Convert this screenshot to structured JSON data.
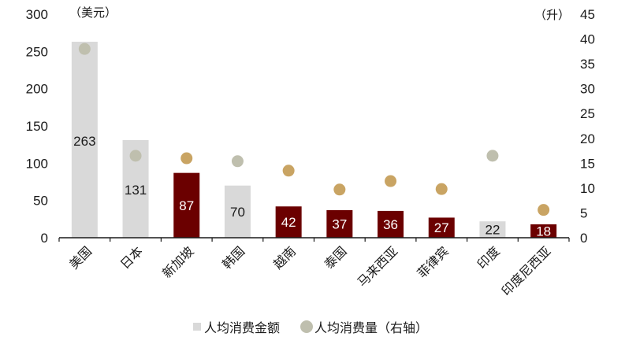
{
  "chart_data": {
    "type": "bar",
    "title": "",
    "left_axis": {
      "label": "（美元）",
      "ticks": [
        0,
        50,
        100,
        150,
        200,
        250,
        300
      ],
      "ylim": [
        0,
        300
      ]
    },
    "right_axis": {
      "label": "（升）",
      "ticks": [
        0,
        5,
        10,
        15,
        20,
        25,
        30,
        35,
        40,
        45
      ],
      "ylim": [
        0,
        45
      ]
    },
    "categories": [
      "美国",
      "日本",
      "新加坡",
      "韩国",
      "越南",
      "泰国",
      "马来西亚",
      "菲律宾",
      "印度",
      "印度尼西亚"
    ],
    "series": [
      {
        "name": "人均消费金额",
        "type": "bar",
        "axis": "left",
        "values": [
          263,
          131,
          87,
          70,
          42,
          37,
          36,
          27,
          22,
          18
        ]
      },
      {
        "name": "人均消费量（右轴）",
        "type": "scatter",
        "axis": "right",
        "values": [
          38.0,
          16.5,
          16.0,
          15.4,
          13.5,
          9.7,
          11.4,
          9.8,
          16.5,
          5.6
        ]
      }
    ],
    "highlight": [
      false,
      false,
      true,
      false,
      true,
      true,
      true,
      true,
      false,
      true
    ],
    "colors": {
      "bar_default": "#d9d9d9",
      "bar_highlight": "#6b0000",
      "dot_default": "#bfbfae",
      "dot_highlight": "#c9a463",
      "label_default": "#1a1a1a",
      "label_highlight": "#ffffff"
    },
    "legend_position": "bottom",
    "grid": false
  },
  "legend": {
    "items": [
      {
        "label": "人均消费金额",
        "marker": "square"
      },
      {
        "label": "人均消费量（右轴）",
        "marker": "circle"
      }
    ]
  }
}
